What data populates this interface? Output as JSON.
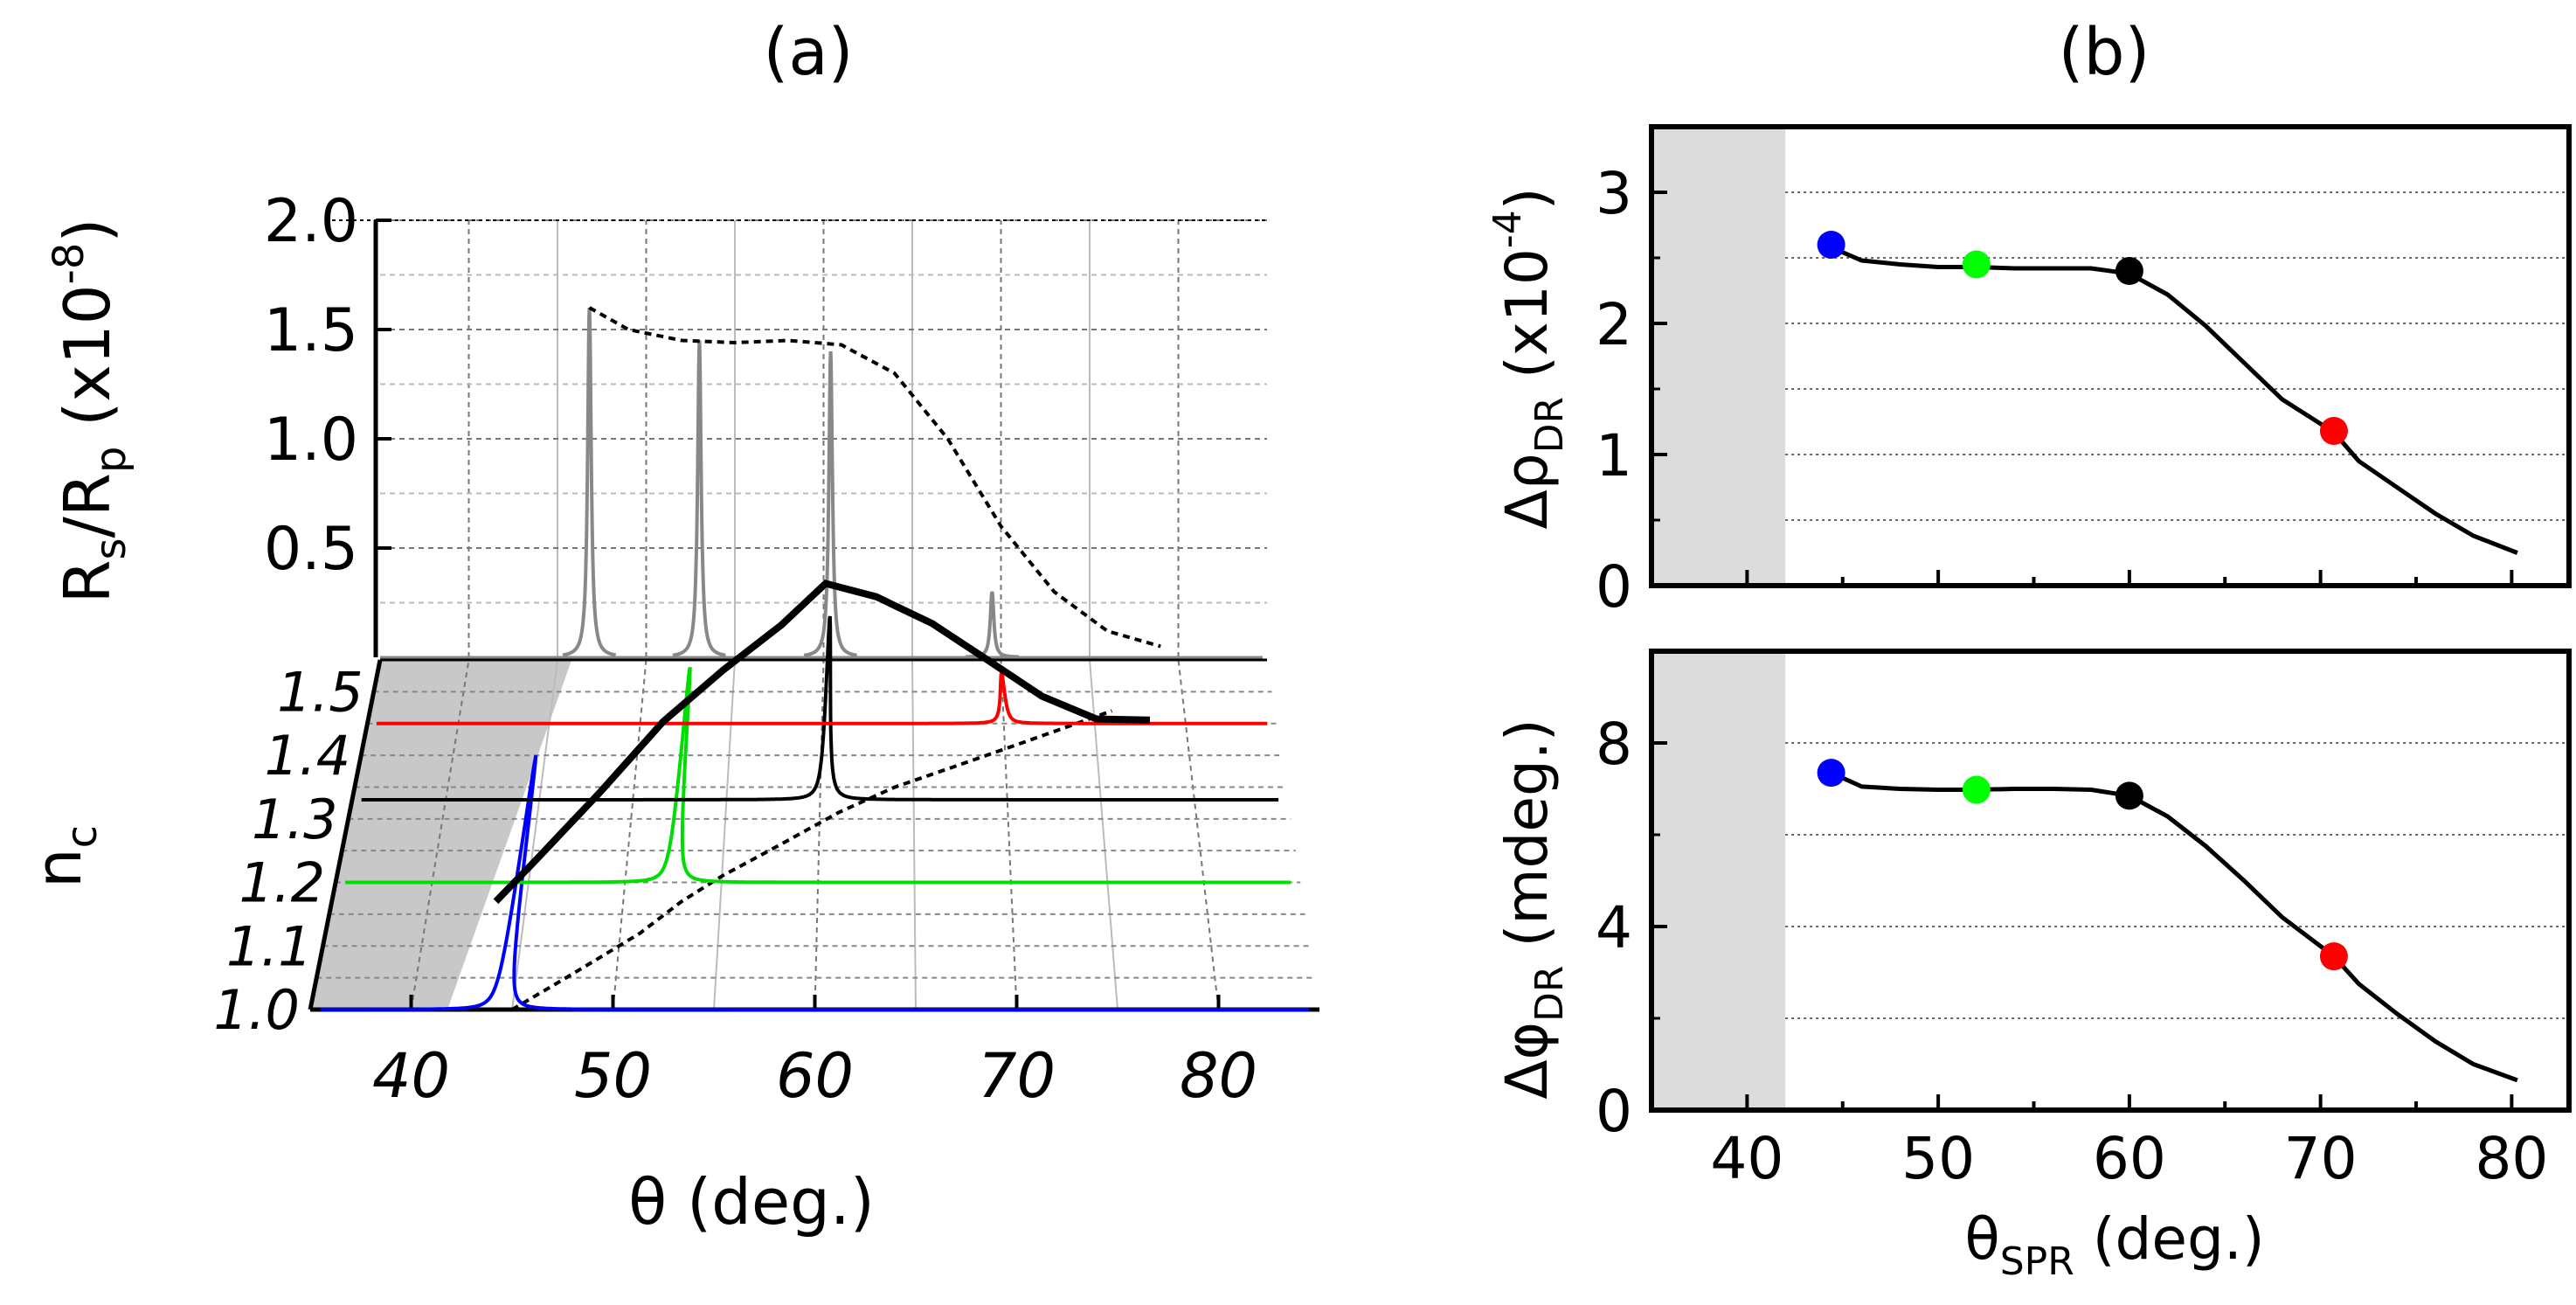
{
  "figure_labels": {
    "a": "(a)",
    "b": "(b)"
  },
  "chart_data": [
    {
      "panel": "a",
      "type": "line",
      "title": "(a)",
      "xlabel": "θ (deg.)",
      "ylabel_back": {
        "main": "R",
        "sub1": "s",
        "slash": "/R",
        "sub2": "p",
        "tail": " (x10",
        "exp": "-8",
        "close": ")"
      },
      "ylabel_floor": {
        "main": "n",
        "sub": "c"
      },
      "x_ticks": [
        "40",
        "50",
        "60",
        "70",
        "80"
      ],
      "x_range": [
        35,
        85
      ],
      "z_ticks": [
        "0.5",
        "1.0",
        "1.5",
        "2.0"
      ],
      "z_range": [
        0,
        2.0
      ],
      "n_ticks": [
        "1.0",
        "1.1",
        "1.2",
        "1.3",
        "1.4",
        "1.5"
      ],
      "n_range": [
        1.0,
        1.55
      ],
      "shaded_region_x": [
        35,
        41.8
      ],
      "floor_spr_curve": {
        "theta": [
          45,
          47,
          49,
          51,
          53,
          55,
          58,
          61,
          64,
          67,
          70,
          73,
          76
        ],
        "n": [
          1.0,
          1.04,
          1.08,
          1.12,
          1.17,
          1.21,
          1.26,
          1.31,
          1.35,
          1.38,
          1.41,
          1.44,
          1.47
        ]
      },
      "floor_spectra": [
        {
          "n": 1.0,
          "color": "#0000ff",
          "theta_spr": 44.5,
          "peak_n": 0.4
        },
        {
          "n": 1.2,
          "color": "#00dd00",
          "theta_spr": 52.5,
          "peak_n": 0.34
        },
        {
          "n": 1.33,
          "color": "#000000",
          "theta_spr": 60.3,
          "peak_n": 0.29
        },
        {
          "n": 1.45,
          "color": "#ff0000",
          "theta_spr": 70.0,
          "peak_n": 0.08
        }
      ],
      "back_peaks": {
        "theta": [
          46.8,
          53.0,
          60.4,
          69.5
        ],
        "height": [
          1.6,
          1.45,
          1.4,
          0.3
        ]
      },
      "back_envelope_dotted": {
        "theta": [
          46.8,
          49,
          52,
          55,
          58,
          61,
          64,
          67,
          70,
          73,
          76,
          79
        ],
        "z": [
          1.6,
          1.5,
          1.45,
          1.44,
          1.45,
          1.43,
          1.3,
          1.0,
          0.6,
          0.3,
          0.12,
          0.05
        ]
      },
      "diagonal_curve": {
        "theta": [
          44.2,
          46,
          49,
          52,
          55,
          58,
          60.3,
          63,
          66,
          69,
          72,
          75,
          78
        ],
        "n": [
          1.0,
          1.05,
          1.12,
          1.19,
          1.24,
          1.28,
          1.33,
          1.34,
          1.36,
          1.38,
          1.4,
          1.42,
          1.44
        ],
        "z": [
          0.55,
          0.6,
          0.72,
          0.85,
          0.95,
          1.05,
          1.1,
          1.0,
          0.8,
          0.55,
          0.3,
          0.12,
          0.05
        ]
      }
    },
    {
      "panel": "b-top",
      "type": "line",
      "title": "(b)",
      "xlabel": "",
      "ylabel": {
        "pre": "Δρ",
        "sub": "DR",
        "tail": " (x10",
        "exp": "-4",
        "close": ")"
      },
      "x_range": [
        35,
        83
      ],
      "ylim": [
        0,
        3.5
      ],
      "y_ticks": [
        "0",
        "1",
        "2",
        "3"
      ],
      "grid_y": [
        0.5,
        1,
        1.5,
        2,
        2.5,
        3
      ],
      "shaded_region_x": [
        35,
        42
      ],
      "series": [
        {
          "name": "Δρ_DR",
          "x": [
            44.4,
            46,
            48,
            50,
            52,
            54,
            56,
            58,
            60,
            62,
            64,
            66,
            68,
            70.7,
            72,
            74,
            76,
            78,
            80.3
          ],
          "values": [
            2.58,
            2.48,
            2.45,
            2.43,
            2.43,
            2.42,
            2.42,
            2.42,
            2.38,
            2.22,
            1.98,
            1.7,
            1.42,
            1.17,
            0.95,
            0.75,
            0.55,
            0.38,
            0.25
          ]
        }
      ],
      "markers": [
        {
          "x": 44.4,
          "y": 2.6,
          "color": "#0000ff"
        },
        {
          "x": 52.0,
          "y": 2.45,
          "color": "#00ff00"
        },
        {
          "x": 60.0,
          "y": 2.4,
          "color": "#000000"
        },
        {
          "x": 70.7,
          "y": 1.18,
          "color": "#ff0000"
        }
      ]
    },
    {
      "panel": "b-bottom",
      "type": "line",
      "xlabel": {
        "pre": "θ",
        "sub": "SPR",
        "tail": " (deg.)"
      },
      "ylabel": {
        "pre": "Δφ",
        "sub": "DR",
        "tail": " (mdeg.)"
      },
      "x_ticks": [
        "40",
        "50",
        "60",
        "70",
        "80"
      ],
      "x_range": [
        35,
        83
      ],
      "ylim": [
        0,
        10
      ],
      "y_ticks": [
        "0",
        "4",
        "8"
      ],
      "grid_y": [
        2,
        4,
        6,
        8
      ],
      "shaded_region_x": [
        35,
        42
      ],
      "series": [
        {
          "name": "Δφ_DR",
          "x": [
            44.4,
            46,
            48,
            50,
            52,
            54,
            56,
            58,
            60,
            62,
            64,
            66,
            68,
            70.7,
            72,
            74,
            76,
            78,
            80.3
          ],
          "values": [
            7.35,
            7.05,
            7.0,
            6.98,
            6.98,
            7.0,
            7.0,
            6.98,
            6.85,
            6.4,
            5.75,
            5.0,
            4.2,
            3.35,
            2.75,
            2.1,
            1.5,
            1.0,
            0.65
          ]
        }
      ],
      "markers": [
        {
          "x": 44.4,
          "y": 7.35,
          "color": "#0000ff"
        },
        {
          "x": 52.0,
          "y": 6.98,
          "color": "#00ff00"
        },
        {
          "x": 60.0,
          "y": 6.85,
          "color": "#000000"
        },
        {
          "x": 70.7,
          "y": 3.35,
          "color": "#ff0000"
        }
      ]
    }
  ]
}
